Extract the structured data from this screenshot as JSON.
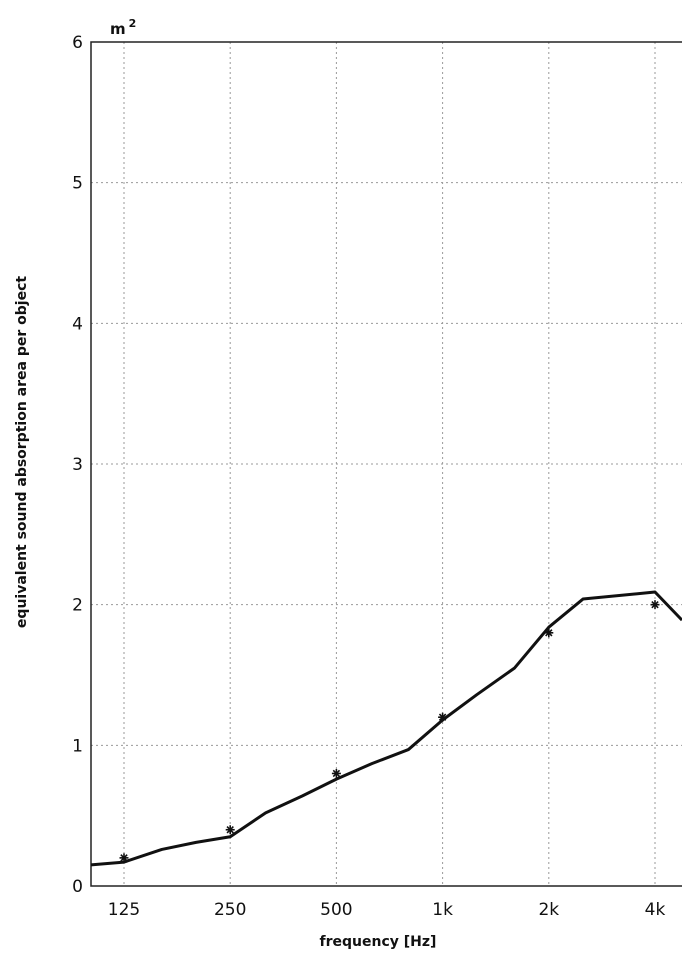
{
  "chart_data": {
    "type": "line",
    "xlabel": "frequency [Hz]",
    "ylabel": "equivalent sound absorption area per object",
    "yunit": "m",
    "yunit_superscript": "2",
    "ylim": [
      0,
      6
    ],
    "yticks": [
      "0",
      "1",
      "2",
      "3",
      "4",
      "5",
      "6"
    ],
    "x_scale": "log",
    "xlim": [
      100,
      5000
    ],
    "x_ticks": [
      {
        "value": 125,
        "label": "125"
      },
      {
        "value": 250,
        "label": "250"
      },
      {
        "value": 500,
        "label": "500"
      },
      {
        "value": 1000,
        "label": "1k"
      },
      {
        "value": 2000,
        "label": "2k"
      },
      {
        "value": 4000,
        "label": "4k"
      }
    ],
    "grid": true,
    "series": [
      {
        "style": "line",
        "x": [
          100,
          125,
          160,
          200,
          250,
          315,
          400,
          500,
          630,
          800,
          1000,
          1250,
          1600,
          2000,
          2500,
          4000,
          5000
        ],
        "y": [
          0.15,
          0.17,
          0.26,
          0.31,
          0.35,
          0.52,
          0.64,
          0.76,
          0.87,
          0.97,
          1.18,
          1.36,
          1.55,
          1.84,
          2.04,
          2.09,
          1.89
        ]
      },
      {
        "style": "markers",
        "marker": "asterisk",
        "x": [
          125,
          250,
          500,
          1000,
          2000,
          4000
        ],
        "y": [
          0.2,
          0.4,
          0.8,
          1.2,
          1.8,
          2.0
        ]
      }
    ]
  }
}
